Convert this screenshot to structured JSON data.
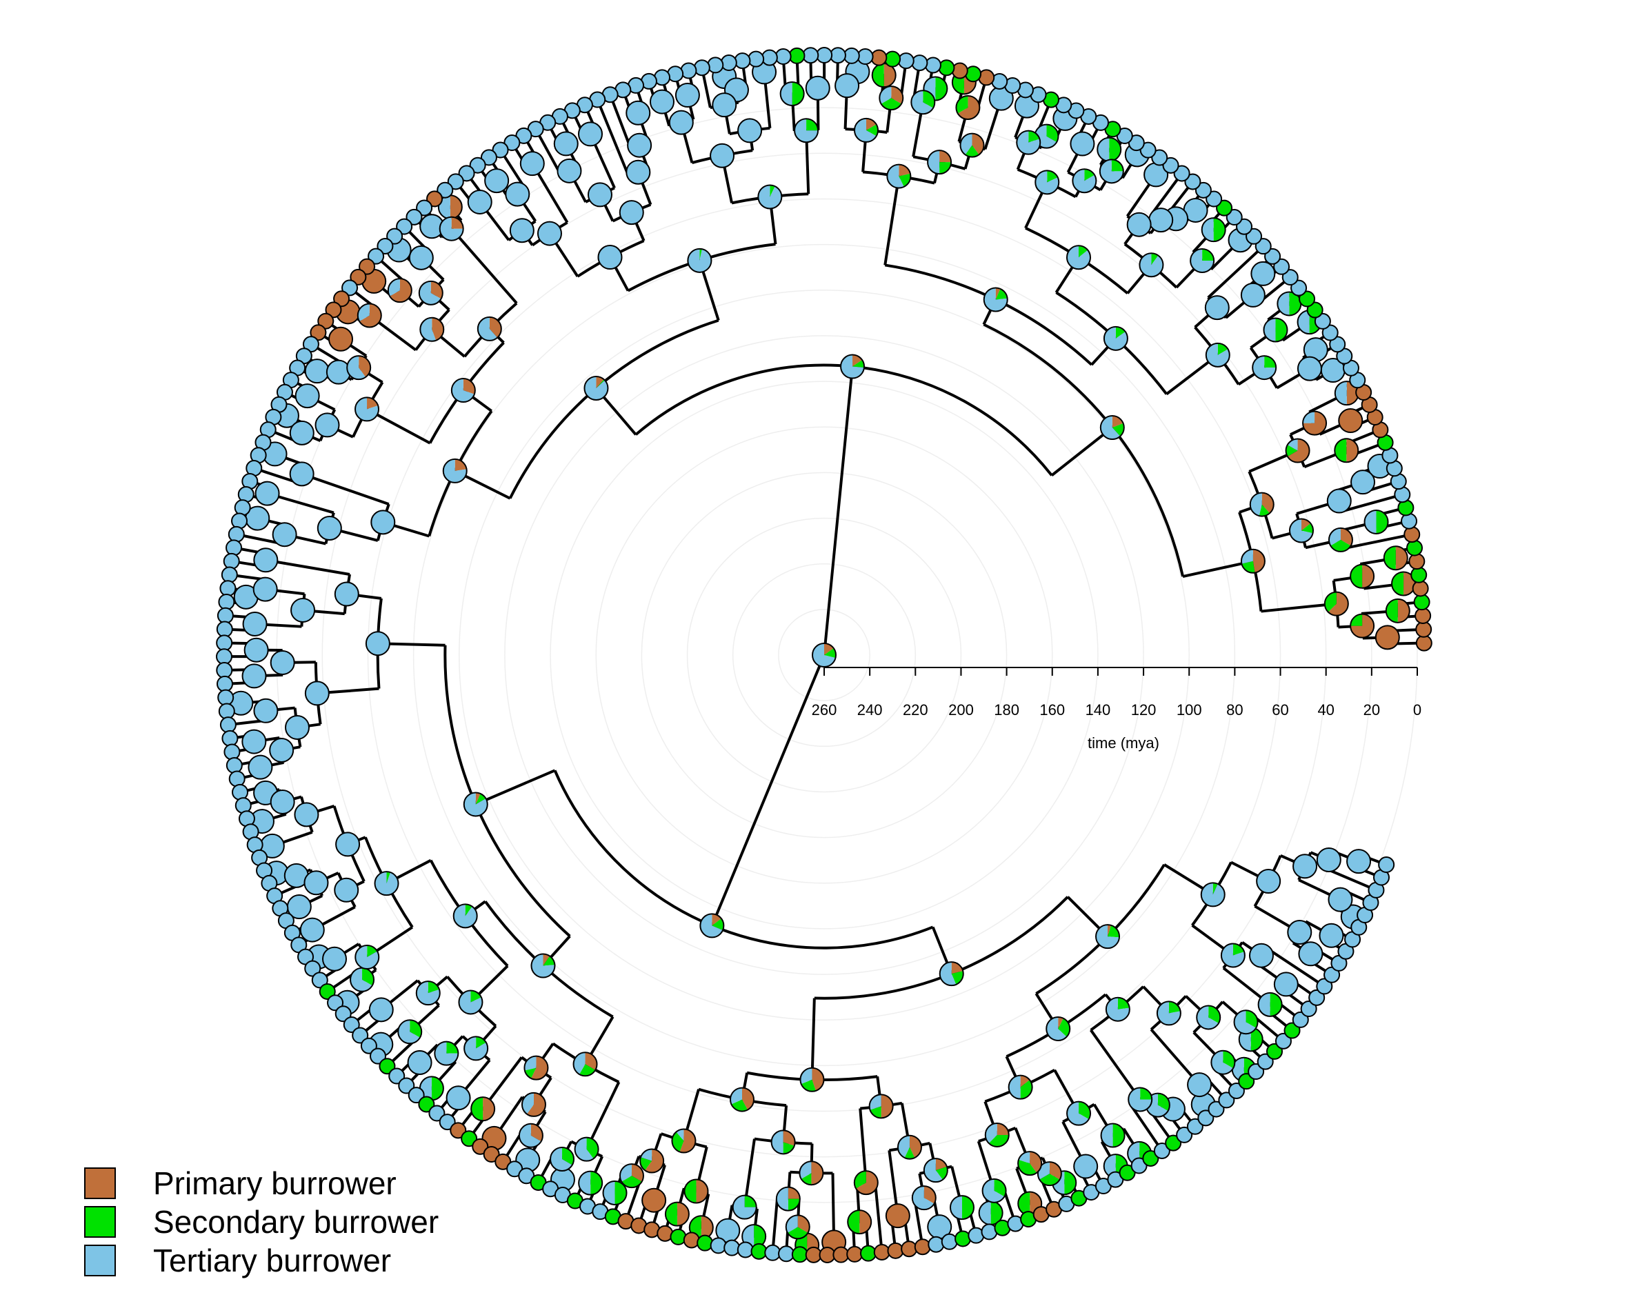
{
  "axis": {
    "title": "time (mya)",
    "ticks": [
      260,
      240,
      220,
      200,
      180,
      160,
      140,
      120,
      100,
      80,
      60,
      40,
      20,
      0
    ],
    "max": 260
  },
  "states": [
    {
      "key": "primary",
      "label": "Primary burrower",
      "color": "#c0703a"
    },
    {
      "key": "secondary",
      "label": "Secondary burrower",
      "color": "#00e100"
    },
    {
      "key": "tertiary",
      "label": "Tertiary burrower",
      "color": "#7ec4e6"
    }
  ],
  "tips": {
    "count": 260,
    "states": "PPPSPSPSPTSTTTTSPPPPTTTTTTSSTTTTTTTTSTTTTTTTTTSTTTTSTTTTPSPSTTTSPTTTTTSTTTTTTTTTTTTTTTTTTTTTTTTTTTTPTTTTTTPPTPPPPTTTTTTTTTTTTTTTTTTTTTTTTTTTTTTTTTTTTTTTTTTTTTTTTTTSTTTTTTSTTTSTTPSPPPTTSTTSTTSPPPPSPSTTTSTTSPPPPSPPPPTTSTTSTSPPTSTTTSTSTSTTTTTTSTTSTSTTTTTTT"
  }
}
